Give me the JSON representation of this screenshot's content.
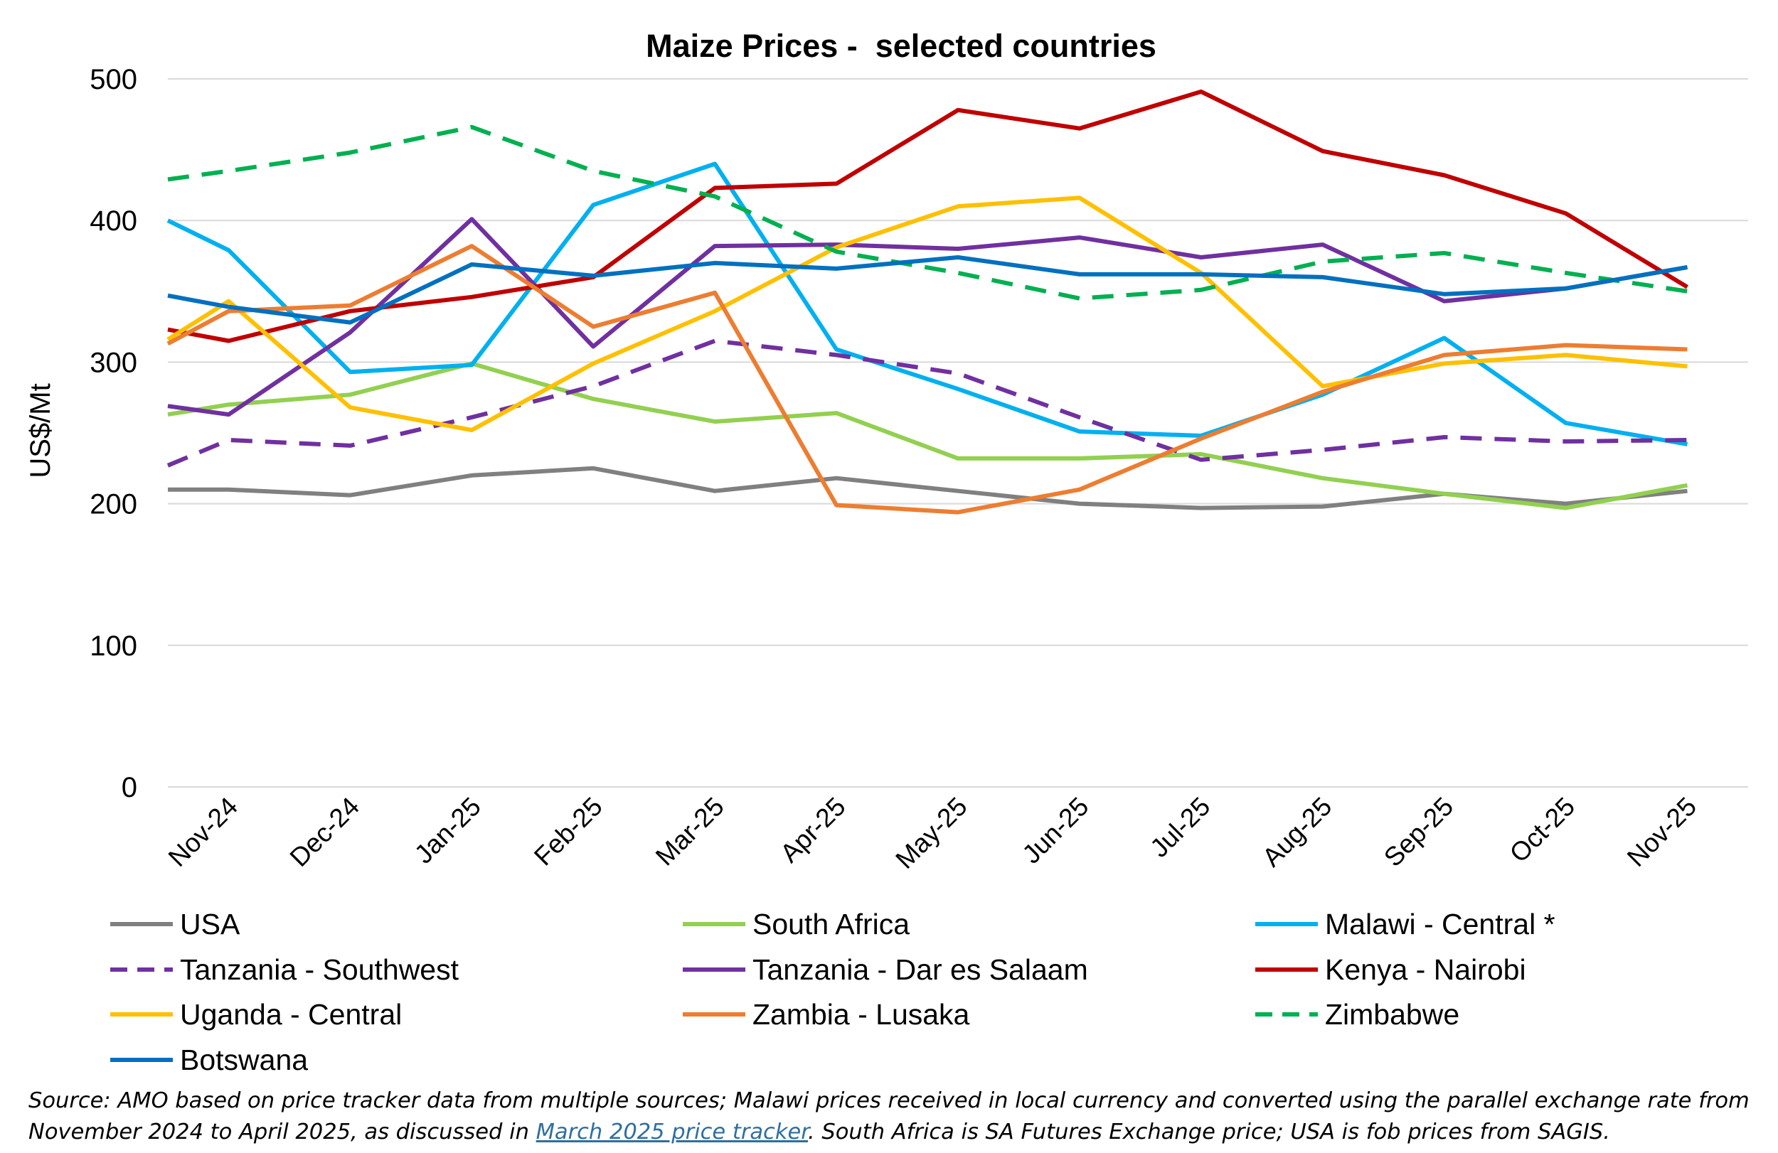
{
  "chart_data": {
    "type": "line",
    "title": "Maize Prices -  selected countries",
    "xlabel": "",
    "ylabel": "US$/Mt",
    "ylim": [
      0,
      500
    ],
    "yticks": [
      0,
      100,
      200,
      300,
      400,
      500
    ],
    "grid": true,
    "legend_position": "bottom",
    "categories": [
      "Nov-24",
      "Dec-24",
      "Jan-25",
      "Feb-25",
      "Mar-25",
      "Apr-25",
      "May-25",
      "Jun-25",
      "Jul-25",
      "Aug-25",
      "Sep-25",
      "Oct-25",
      "Nov-25"
    ],
    "series": [
      {
        "name": "USA",
        "color": "#808080",
        "dash": "solid",
        "x": [
          0,
          0.5,
          1.5,
          2.5,
          3.5,
          4.5,
          5.5,
          6.5,
          7.5,
          8.5,
          9.5,
          10.5,
          11.5,
          12.5
        ],
        "values": [
          210,
          210,
          206,
          220,
          225,
          209,
          218,
          209,
          200,
          197,
          198,
          207,
          200,
          209
        ]
      },
      {
        "name": "South Africa",
        "color": "#92D050",
        "dash": "solid",
        "x": [
          0,
          0.5,
          1.5,
          2.5,
          3.5,
          4.5,
          5.5,
          6.5,
          7.5,
          8.5,
          9.5,
          10.5,
          11.5,
          12.5
        ],
        "values": [
          263,
          270,
          277,
          299,
          274,
          258,
          264,
          232,
          232,
          235,
          218,
          207,
          197,
          213
        ]
      },
      {
        "name": "Malawi - Central *",
        "color": "#00B0F0",
        "dash": "solid",
        "x": [
          0,
          0.5,
          1.5,
          2.5,
          3.5,
          4.5,
          5.5,
          6.5,
          7.5,
          8.5,
          9.5,
          10.5,
          11.5,
          12.5
        ],
        "values": [
          400,
          379,
          293,
          298,
          411,
          440,
          309,
          281,
          251,
          248,
          277,
          317,
          257,
          242
        ]
      },
      {
        "name": "Tanzania -  Southwest",
        "color": "#7030A0",
        "dash": "dashed",
        "x": [
          0,
          0.5,
          1.5,
          2.5,
          3.5,
          4.5,
          5.5,
          6.5,
          7.5,
          8.5,
          9.5,
          10.5,
          11.5,
          12.5
        ],
        "values": [
          227,
          245,
          241,
          261,
          283,
          315,
          305,
          292,
          261,
          231,
          238,
          247,
          244,
          245
        ]
      },
      {
        "name": "Tanzania - Dar es Salaam",
        "color": "#7030A0",
        "dash": "solid",
        "x": [
          0,
          0.5,
          1.5,
          2.5,
          3.5,
          4.5,
          5.5,
          6.5,
          7.5,
          8.5,
          9.5,
          10.5,
          11.5,
          12.5
        ],
        "values": [
          269,
          263,
          321,
          401,
          311,
          382,
          383,
          380,
          388,
          374,
          383,
          343,
          352,
          367
        ]
      },
      {
        "name": "Kenya - Nairobi",
        "color": "#C00000",
        "dash": "solid",
        "x": [
          0,
          0.5,
          1.5,
          2.5,
          3.5,
          4.5,
          5.5,
          6.5,
          7.5,
          8.5,
          9.5,
          10.5,
          11.5,
          12.5
        ],
        "values": [
          323,
          315,
          336,
          346,
          360,
          423,
          426,
          478,
          465,
          491,
          449,
          432,
          405,
          353
        ]
      },
      {
        "name": "Uganda - Central",
        "color": "#FFC000",
        "dash": "solid",
        "x": [
          0,
          0.5,
          1.5,
          2.5,
          3.5,
          4.5,
          5.5,
          6.5,
          7.5,
          8.5,
          9.5,
          10.5,
          11.5,
          12.5
        ],
        "values": [
          316,
          343,
          268,
          252,
          299,
          336,
          381,
          410,
          416,
          363,
          283,
          299,
          305,
          297
        ]
      },
      {
        "name": "Zambia - Lusaka",
        "color": "#ED7D31",
        "dash": "solid",
        "x": [
          0,
          0.5,
          1.5,
          2.5,
          3.5,
          4.5,
          5.5,
          6.5,
          7.5,
          8.5,
          9.5,
          10.5,
          11.5,
          12.5
        ],
        "values": [
          313,
          336,
          340,
          382,
          325,
          349,
          199,
          194,
          210,
          246,
          279,
          305,
          312,
          309
        ]
      },
      {
        "name": "Zimbabwe",
        "color": "#00B050",
        "dash": "dashed",
        "x": [
          0,
          0.5,
          1.5,
          2.5,
          3.5,
          4.5,
          5.5,
          6.5,
          7.5,
          8.5,
          9.5,
          10.5,
          11.5,
          12.5
        ],
        "values": [
          429,
          435,
          448,
          466,
          435,
          417,
          378,
          363,
          345,
          351,
          371,
          377,
          363,
          350
        ]
      },
      {
        "name": "Botswana",
        "color": "#0070C0",
        "dash": "solid",
        "x": [
          0,
          0.5,
          1.5,
          2.5,
          3.5,
          4.5,
          5.5,
          6.5,
          7.5,
          8.5,
          9.5,
          10.5,
          11.5,
          12.5
        ],
        "values": [
          347,
          339,
          328,
          369,
          361,
          370,
          366,
          374,
          362,
          362,
          360,
          348,
          352,
          367
        ]
      }
    ]
  },
  "source_note": {
    "part1": "Source: AMO based on price tracker data from multiple sources; Malawi prices received in local currency and converted using the parallel exchange rate from November 2024 to April 2025, as discussed in ",
    "link_text": "March 2025 price tracker",
    "part2": ". South Africa is SA Futures Exchange price; USA is fob prices from SAGIS."
  }
}
